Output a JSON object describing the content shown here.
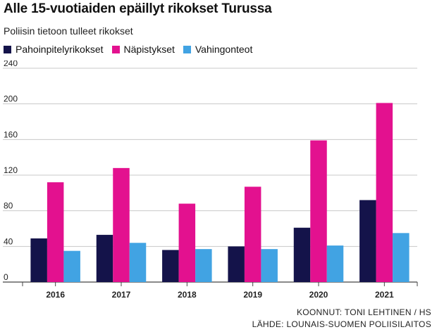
{
  "header": {
    "title": "Alle 15-vuotiaiden epäillyt rikokset Turussa",
    "subtitle": "Poliisin tietoon tulleet rikokset"
  },
  "legend": {
    "items": [
      {
        "label": "Pahoinpitelyrikokset",
        "color": "#14134a"
      },
      {
        "label": "Näpistykset",
        "color": "#e3118f"
      },
      {
        "label": "Vahingonteot",
        "color": "#41a3e3"
      }
    ]
  },
  "footer": {
    "credit": "KOONNUT: TONI LEHTINEN / HS",
    "source": "LÄHDE: LOUNAIS-SUOMEN POLIISILAITOS"
  },
  "chart_data": {
    "type": "bar",
    "title": "Alle 15-vuotiaiden epäillyt rikokset Turussa",
    "subtitle": "Poliisin tietoon tulleet rikokset",
    "categories": [
      "2016",
      "2017",
      "2018",
      "2019",
      "2020",
      "2021"
    ],
    "series": [
      {
        "name": "Pahoinpitelyrikokset",
        "color": "#14134a",
        "values": [
          49,
          53,
          36,
          40,
          61,
          92
        ]
      },
      {
        "name": "Näpistykset",
        "color": "#e3118f",
        "values": [
          112,
          128,
          88,
          107,
          159,
          201
        ]
      },
      {
        "name": "Vahingonteot",
        "color": "#41a3e3",
        "values": [
          35,
          44,
          37,
          37,
          41,
          55
        ]
      }
    ],
    "ylim": [
      0,
      240
    ],
    "yticks": [
      0,
      40,
      80,
      120,
      160,
      200,
      240
    ],
    "grid": true,
    "legend_position": "top-left",
    "xlabel": "",
    "ylabel": ""
  }
}
